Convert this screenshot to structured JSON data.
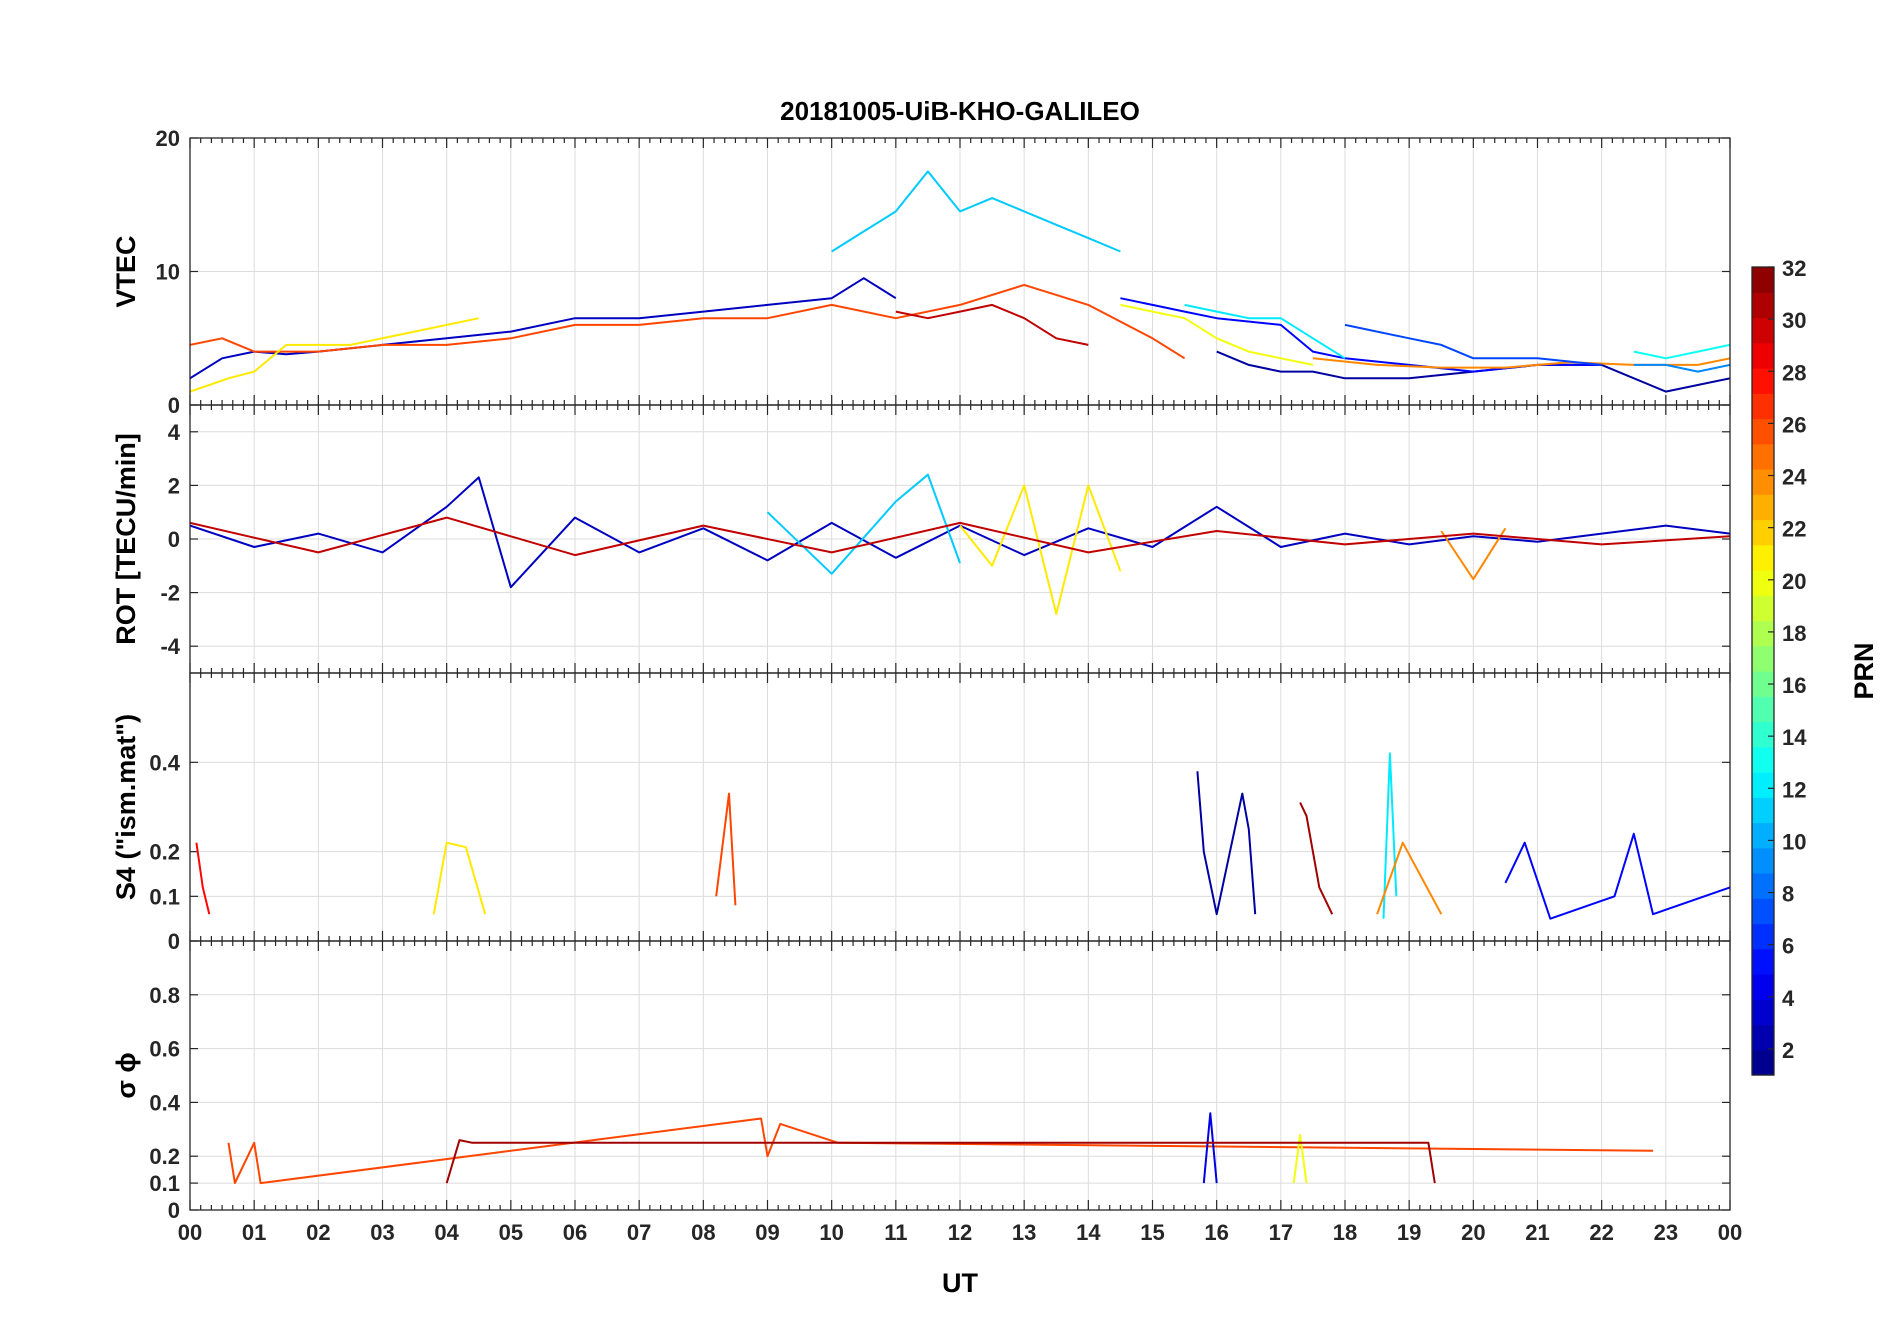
{
  "chart_data": {
    "type": "line",
    "title": "20181005-UiB-KHO-GALILEO",
    "xlabel": "UT",
    "x_ticks": [
      "00",
      "01",
      "02",
      "03",
      "04",
      "05",
      "06",
      "07",
      "08",
      "09",
      "10",
      "11",
      "12",
      "13",
      "14",
      "15",
      "16",
      "17",
      "18",
      "19",
      "20",
      "21",
      "22",
      "23",
      "00"
    ],
    "x_range_hours": [
      0,
      24
    ],
    "grid": true,
    "panels": [
      {
        "id": "vtec",
        "ylabel": "VTEC",
        "ylim": [
          0,
          20
        ],
        "yticks": [
          0,
          10,
          20
        ],
        "series": [
          {
            "prn": 11,
            "x": [
              10.0,
              10.5,
              11.0,
              11.5,
              12.0,
              12.5,
              13.0,
              13.5,
              14.0,
              14.5
            ],
            "y": [
              11.5,
              13.0,
              14.5,
              17.5,
              14.5,
              15.5,
              14.5,
              13.5,
              12.5,
              11.5
            ]
          },
          {
            "prn": 3,
            "x": [
              0.0,
              0.5,
              1.0,
              1.5,
              2.0,
              3.0,
              4.0,
              5.0,
              6.0,
              7.0,
              8.0,
              9.0,
              10.0,
              10.5,
              11.0
            ],
            "y": [
              2.0,
              3.5,
              4.0,
              3.8,
              4.0,
              4.5,
              5.0,
              5.5,
              6.5,
              6.5,
              7.0,
              7.5,
              8.0,
              9.5,
              8.0
            ]
          },
          {
            "prn": 26,
            "x": [
              0.0,
              0.5,
              1.0,
              2.0,
              3.0,
              4.0,
              5.0,
              6.0,
              7.0,
              8.0,
              9.0,
              10.0,
              11.0,
              12.0,
              13.0,
              14.0,
              15.0,
              15.5
            ],
            "y": [
              4.5,
              5.0,
              4.0,
              4.0,
              4.5,
              4.5,
              5.0,
              6.0,
              6.0,
              6.5,
              6.5,
              7.5,
              6.5,
              7.5,
              9.0,
              7.5,
              5.0,
              3.5
            ]
          },
          {
            "prn": 21,
            "x": [
              0.0,
              0.3,
              0.6,
              1.0,
              1.5,
              2.5,
              3.5,
              4.5
            ],
            "y": [
              1.0,
              1.5,
              2.0,
              2.5,
              4.5,
              4.5,
              5.5,
              6.5
            ]
          },
          {
            "prn": 2,
            "x": [
              16.0,
              16.5,
              17.0,
              17.5,
              18.0,
              19.0,
              20.0,
              21.0,
              22.0,
              23.0,
              24.0
            ],
            "y": [
              4.0,
              3.0,
              2.5,
              2.5,
              2.0,
              2.0,
              2.5,
              3.0,
              3.0,
              1.0,
              2.0
            ]
          },
          {
            "prn": 5,
            "x": [
              14.5,
              15.0,
              15.5,
              16.0,
              17.0,
              17.5,
              18.0,
              19.0,
              20.0,
              21.0,
              22.0
            ],
            "y": [
              8.0,
              7.5,
              7.0,
              6.5,
              6.0,
              4.0,
              3.5,
              3.0,
              2.5,
              3.0,
              3.0
            ]
          },
          {
            "prn": 12,
            "x": [
              15.5,
              16.0,
              16.5,
              17.0,
              17.5,
              18.0
            ],
            "y": [
              7.5,
              7.0,
              6.5,
              6.5,
              5.0,
              3.5
            ]
          },
          {
            "prn": 24,
            "x": [
              17.5,
              18.5,
              19.5,
              20.5,
              21.5,
              22.5,
              23.5,
              24.0
            ],
            "y": [
              3.5,
              3.0,
              2.8,
              2.8,
              3.2,
              3.0,
              3.0,
              3.5
            ]
          },
          {
            "prn": 20,
            "x": [
              14.5,
              15.0,
              15.5,
              16.0,
              16.5,
              17.0,
              17.5
            ],
            "y": [
              7.5,
              7.0,
              6.5,
              5.0,
              4.0,
              3.5,
              3.0
            ]
          },
          {
            "prn": 13,
            "x": [
              22.5,
              23.0,
              23.5,
              24.0
            ],
            "y": [
              4.0,
              3.5,
              4.0,
              4.5
            ]
          },
          {
            "prn": 9,
            "x": [
              22.5,
              23.0,
              23.5,
              24.0
            ],
            "y": [
              3.0,
              3.0,
              2.5,
              3.0
            ]
          },
          {
            "prn": 7,
            "x": [
              18.0,
              19.0,
              19.5,
              20.0,
              21.0,
              22.0
            ],
            "y": [
              6.0,
              5.0,
              4.5,
              3.5,
              3.5,
              3.0
            ]
          },
          {
            "prn": 30,
            "x": [
              11.0,
              11.5,
              12.0,
              12.5,
              13.0,
              13.5,
              14.0
            ],
            "y": [
              7.0,
              6.5,
              7.0,
              7.5,
              6.5,
              5.0,
              4.5
            ]
          }
        ]
      },
      {
        "id": "rot",
        "ylabel": "ROT [TECU/min]",
        "ylim": [
          -5,
          5
        ],
        "yticks": [
          -4,
          -2,
          0,
          2,
          4
        ],
        "series": [
          {
            "prn": 3,
            "x": [
              0,
              1,
              2,
              3,
              4,
              4.5,
              5,
              6,
              7,
              8,
              9,
              10,
              11,
              12,
              13,
              14,
              15,
              16,
              17,
              18,
              19,
              20,
              21,
              22,
              23,
              24
            ],
            "y": [
              0.5,
              -0.3,
              0.2,
              -0.5,
              1.2,
              2.3,
              -1.8,
              0.8,
              -0.5,
              0.4,
              -0.8,
              0.6,
              -0.7,
              0.5,
              -0.6,
              0.4,
              -0.3,
              1.2,
              -0.3,
              0.2,
              -0.2,
              0.1,
              -0.1,
              0.2,
              0.5,
              0.2
            ]
          },
          {
            "prn": 21,
            "x": [
              12,
              12.5,
              13,
              13.5,
              14,
              14.5
            ],
            "y": [
              0.5,
              -1.0,
              2.0,
              -2.8,
              2.0,
              -1.2
            ]
          },
          {
            "prn": 11,
            "x": [
              9,
              10,
              11,
              11.5,
              12
            ],
            "y": [
              1.0,
              -1.3,
              1.4,
              2.4,
              -0.9
            ]
          },
          {
            "prn": 24,
            "x": [
              19.5,
              20,
              20.5
            ],
            "y": [
              0.3,
              -1.5,
              0.4
            ]
          },
          {
            "prn": 30,
            "x": [
              0,
              2,
              4,
              6,
              8,
              10,
              12,
              14,
              16,
              18,
              20,
              22,
              24
            ],
            "y": [
              0.6,
              -0.5,
              0.8,
              -0.6,
              0.5,
              -0.5,
              0.6,
              -0.5,
              0.3,
              -0.2,
              0.2,
              -0.2,
              0.1
            ]
          }
        ]
      },
      {
        "id": "s4",
        "ylabel": "S4 (\"ism.mat\")",
        "ylim": [
          0,
          0.6
        ],
        "yticks": [
          0,
          0.1,
          0.2,
          0.4
        ],
        "series": [
          {
            "prn": 28,
            "x": [
              0.1,
              0.2,
              0.3
            ],
            "y": [
              0.22,
              0.12,
              0.06
            ]
          },
          {
            "prn": 26,
            "x": [
              8.2,
              8.4,
              8.5
            ],
            "y": [
              0.1,
              0.33,
              0.08
            ]
          },
          {
            "prn": 2,
            "x": [
              15.7,
              15.8,
              16.0,
              16.4,
              16.5,
              16.6
            ],
            "y": [
              0.38,
              0.2,
              0.06,
              0.33,
              0.25,
              0.06
            ]
          },
          {
            "prn": 31,
            "x": [
              17.3,
              17.4,
              17.6,
              17.8
            ],
            "y": [
              0.31,
              0.28,
              0.12,
              0.06
            ]
          },
          {
            "prn": 12,
            "x": [
              18.6,
              18.7,
              18.8
            ],
            "y": [
              0.05,
              0.42,
              0.1
            ]
          },
          {
            "prn": 5,
            "x": [
              20.5,
              20.8,
              21.2,
              22.2,
              22.5,
              22.8,
              24.0
            ],
            "y": [
              0.13,
              0.22,
              0.05,
              0.1,
              0.24,
              0.06,
              0.12
            ]
          },
          {
            "prn": 24,
            "x": [
              18.5,
              18.9,
              19.5
            ],
            "y": [
              0.06,
              0.22,
              0.06
            ]
          },
          {
            "prn": 21,
            "x": [
              3.8,
              4.0,
              4.3,
              4.6
            ],
            "y": [
              0.06,
              0.22,
              0.21,
              0.06
            ]
          }
        ]
      },
      {
        "id": "sigma",
        "ylabel": "σ ϕ",
        "ylim": [
          0,
          1
        ],
        "yticks": [
          0,
          0.1,
          0.2,
          0.4,
          0.6,
          0.8
        ],
        "series": [
          {
            "prn": 26,
            "x": [
              0.6,
              0.7,
              1.0,
              1.1,
              8.9,
              9.0,
              9.2,
              10.1,
              22.8
            ],
            "y": [
              0.25,
              0.1,
              0.25,
              0.1,
              0.34,
              0.2,
              0.32,
              0.25,
              0.22
            ]
          },
          {
            "prn": 4,
            "x": [
              15.8,
              15.9,
              16.0
            ],
            "y": [
              0.1,
              0.36,
              0.1
            ]
          },
          {
            "prn": 20,
            "x": [
              17.2,
              17.3,
              17.4
            ],
            "y": [
              0.1,
              0.28,
              0.1
            ]
          },
          {
            "prn": 31,
            "x": [
              4.0,
              4.2,
              4.4,
              19.3,
              19.4
            ],
            "y": [
              0.1,
              0.26,
              0.25,
              0.25,
              0.1
            ]
          }
        ]
      }
    ],
    "colorbar": {
      "label": "PRN",
      "colormap": "jet",
      "range": [
        1,
        32
      ],
      "ticks": [
        2,
        4,
        6,
        8,
        10,
        12,
        14,
        16,
        18,
        20,
        22,
        24,
        26,
        28,
        30,
        32
      ]
    }
  }
}
